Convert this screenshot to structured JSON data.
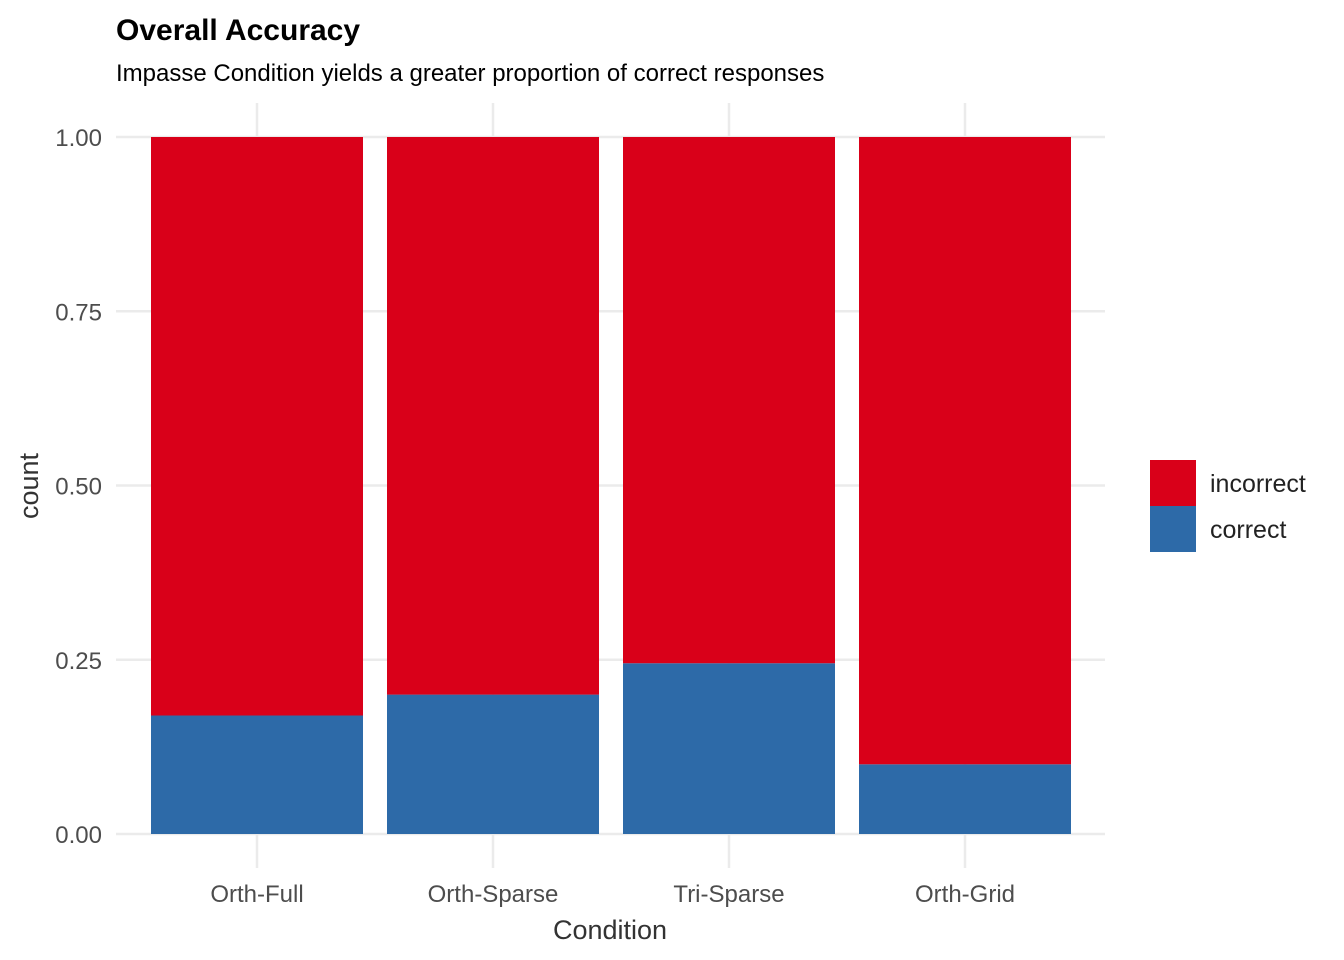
{
  "chart_data": {
    "type": "bar",
    "stacked": true,
    "title": "Overall Accuracy",
    "subtitle": "Impasse Condition yields a greater proportion of correct responses",
    "xlabel": "Condition",
    "ylabel": "count",
    "categories": [
      "Orth-Full",
      "Orth-Sparse",
      "Tri-Sparse",
      "Orth-Grid"
    ],
    "series": [
      {
        "name": "correct",
        "values": [
          0.17,
          0.2,
          0.245,
          0.1
        ],
        "color": "#2d6aa8"
      },
      {
        "name": "incorrect",
        "values": [
          0.83,
          0.8,
          0.755,
          0.9
        ],
        "color": "#d90019"
      }
    ],
    "ylim": [
      0,
      1
    ],
    "yticks": [
      "0.00",
      "0.25",
      "0.50",
      "0.75",
      "1.00"
    ],
    "ytick_values": [
      0,
      0.25,
      0.5,
      0.75,
      1
    ],
    "grid": true,
    "legend": {
      "position": "right",
      "entries": [
        {
          "label": "incorrect",
          "color": "#d90019"
        },
        {
          "label": "correct",
          "color": "#2d6aa8"
        }
      ]
    }
  }
}
